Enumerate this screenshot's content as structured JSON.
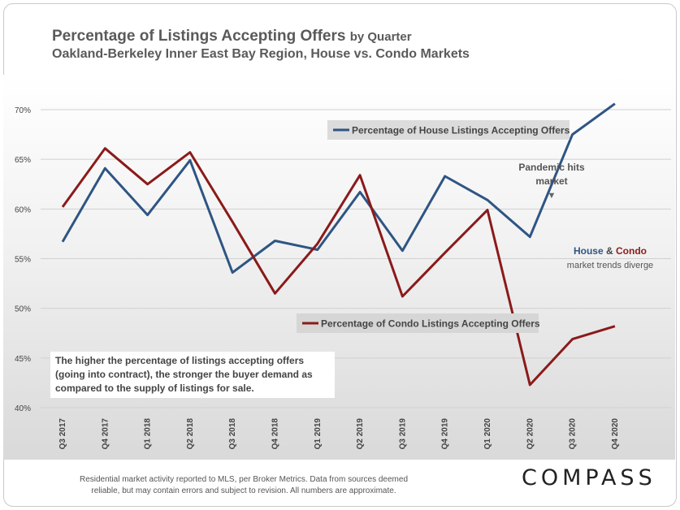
{
  "header": {
    "title_main": "Percentage of Listings Accepting Offers",
    "title_suffix": "by Quarter",
    "subtitle": "Oakland-Berkeley Inner East Bay Region, House vs. Condo Markets"
  },
  "chart_data": {
    "type": "line",
    "categories": [
      "Q3 2017",
      "Q4 2017",
      "Q1 2018",
      "Q2 2018",
      "Q3 2018",
      "Q4 2018",
      "Q1 2019",
      "Q2 2019",
      "Q3 2019",
      "Q4 2019",
      "Q1 2020",
      "Q2 2020",
      "Q3 2020",
      "Q4 2020"
    ],
    "y_ticks": [
      "70%",
      "65%",
      "60%",
      "55%",
      "50%",
      "45%",
      "40%"
    ],
    "ylim": [
      40,
      70
    ],
    "grid": true,
    "series": [
      {
        "name": "Percentage of House Listings Accepting Offers",
        "color": "#2e5583",
        "values": [
          56.7,
          64.1,
          59.4,
          64.9,
          53.6,
          56.8,
          55.9,
          61.7,
          55.8,
          63.3,
          60.9,
          57.2,
          67.5,
          70.6
        ]
      },
      {
        "name": "Percentage of Condo Listings Accepting Offers",
        "color": "#8b1a1a",
        "values": [
          60.2,
          66.1,
          62.5,
          65.7,
          58.7,
          51.5,
          56.5,
          63.4,
          51.2,
          55.6,
          59.9,
          42.3,
          46.9,
          48.2
        ]
      }
    ],
    "annotations": {
      "pandemic_line1": "Pandemic hits",
      "pandemic_line2": "market",
      "pandemic_arrow": "▼",
      "diverge_house": "House",
      "diverge_amp": " & ",
      "diverge_condo": "Condo",
      "diverge_line2": "market trends diverge",
      "note_text": "The higher the percentage of listings accepting offers (going into contract), the stronger the buyer demand as compared to the supply of listings for sale."
    }
  },
  "footer": {
    "disclaimer_line1": "Residential market activity reported to MLS, per Broker Metrics. Data from sources deemed",
    "disclaimer_line2": "reliable, but may contain errors and subject to revision. All numbers are approximate.",
    "brand": "COMPASS"
  }
}
